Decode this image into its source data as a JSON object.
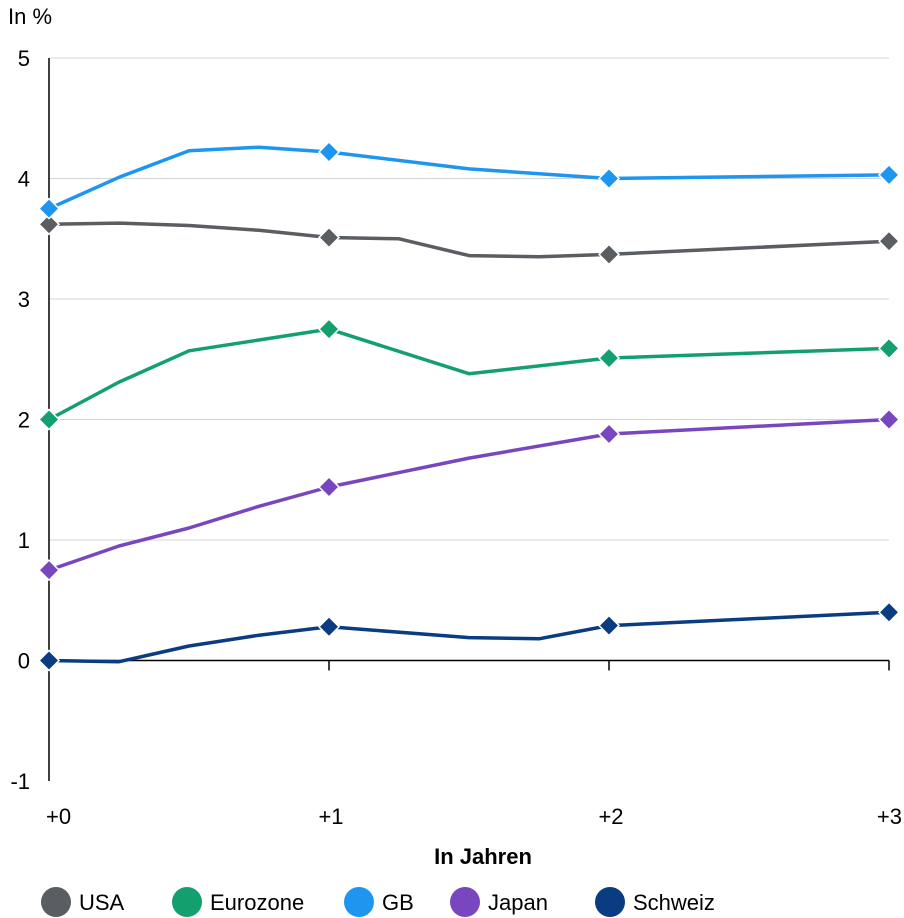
{
  "chart_data": {
    "type": "line",
    "unit_label": "In %",
    "xlabel": "In Jahren",
    "ylabel": "",
    "xlim": [
      0,
      3
    ],
    "ylim": [
      -1,
      5
    ],
    "x_ticks": [
      {
        "value": 0,
        "label": "+0"
      },
      {
        "value": 1,
        "label": "+1"
      },
      {
        "value": 2,
        "label": "+2"
      },
      {
        "value": 3,
        "label": "+3"
      }
    ],
    "y_ticks": [
      {
        "value": -1,
        "label": "-1"
      },
      {
        "value": 0,
        "label": "0"
      },
      {
        "value": 1,
        "label": "1"
      },
      {
        "value": 2,
        "label": "2"
      },
      {
        "value": 3,
        "label": "3"
      },
      {
        "value": 4,
        "label": "4"
      },
      {
        "value": 5,
        "label": "5"
      }
    ],
    "grid": "horizontal",
    "legend": "bottom",
    "series": [
      {
        "name": "USA",
        "color": "#5a5d61",
        "points": [
          [
            0,
            3.62
          ],
          [
            0.25,
            3.63
          ],
          [
            0.5,
            3.61
          ],
          [
            0.75,
            3.57
          ],
          [
            1,
            3.51
          ],
          [
            1.25,
            3.5
          ],
          [
            1.5,
            3.36
          ],
          [
            1.75,
            3.35
          ],
          [
            2,
            3.37
          ],
          [
            3,
            3.48
          ]
        ],
        "markers": [
          0,
          1,
          2,
          3
        ]
      },
      {
        "name": "Eurozone",
        "color": "#14a06e",
        "points": [
          [
            0,
            2.0
          ],
          [
            0.25,
            2.31
          ],
          [
            0.5,
            2.57
          ],
          [
            0.75,
            2.66
          ],
          [
            1,
            2.75
          ],
          [
            1.5,
            2.38
          ],
          [
            2,
            2.51
          ],
          [
            3,
            2.59
          ]
        ],
        "markers": [
          0,
          1,
          2,
          3
        ]
      },
      {
        "name": "GB",
        "color": "#1e96f0",
        "points": [
          [
            0,
            3.75
          ],
          [
            0.25,
            4.01
          ],
          [
            0.5,
            4.23
          ],
          [
            0.75,
            4.26
          ],
          [
            1,
            4.22
          ],
          [
            1.5,
            4.08
          ],
          [
            2,
            4.0
          ],
          [
            3,
            4.03
          ]
        ],
        "markers": [
          0,
          1,
          2,
          3
        ]
      },
      {
        "name": "Japan",
        "color": "#7846be",
        "points": [
          [
            0,
            0.75
          ],
          [
            0.25,
            0.95
          ],
          [
            0.5,
            1.1
          ],
          [
            0.75,
            1.28
          ],
          [
            1,
            1.44
          ],
          [
            1.5,
            1.68
          ],
          [
            2,
            1.88
          ],
          [
            3,
            2.0
          ]
        ],
        "markers": [
          0,
          1,
          2,
          3
        ]
      },
      {
        "name": "Schweiz",
        "color": "#0a3c82",
        "points": [
          [
            0,
            0.0
          ],
          [
            0.25,
            -0.01
          ],
          [
            0.5,
            0.12
          ],
          [
            0.75,
            0.21
          ],
          [
            1,
            0.28
          ],
          [
            1.5,
            0.19
          ],
          [
            1.75,
            0.18
          ],
          [
            2,
            0.29
          ],
          [
            3,
            0.4
          ]
        ],
        "markers": [
          0,
          1,
          2,
          3
        ]
      }
    ]
  }
}
